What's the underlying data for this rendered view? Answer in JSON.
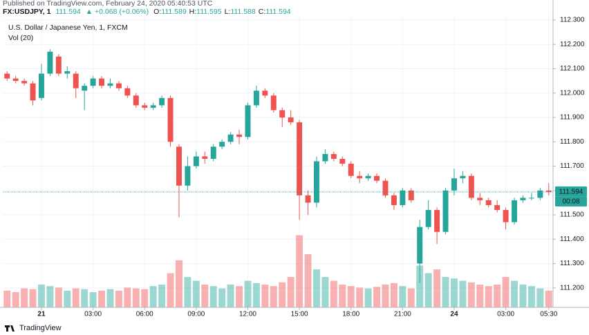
{
  "header": {
    "published": "Published on TradingView.com, February 24, 2020 05:40:53 UTC",
    "symbol": "FX:USDJPY, 1",
    "last": 111.594,
    "change": "▲ +0.068 (+0.06%)",
    "ohlc": [
      {
        "label": "O:",
        "value": 111.589
      },
      {
        "label": "H:",
        "value": 111.595
      },
      {
        "label": "L:",
        "value": 111.588
      },
      {
        "label": "C:",
        "value": 111.594
      }
    ]
  },
  "footer": {
    "brand": "TradingView"
  },
  "chart_data": {
    "type": "candlestick",
    "title": "U.S. Dollar / Japanese Yen, 1, FXCM",
    "volume_label": "Vol (20)",
    "categories": [
      null,
      null,
      null,
      null,
      "21",
      null,
      null,
      null,
      null,
      null,
      "03:00",
      null,
      null,
      null,
      null,
      null,
      "06:00",
      null,
      null,
      null,
      null,
      null,
      "09:00",
      null,
      null,
      null,
      null,
      null,
      "12:00",
      null,
      null,
      null,
      null,
      null,
      "15:00",
      null,
      null,
      null,
      null,
      null,
      "18:00",
      null,
      null,
      null,
      null,
      null,
      "21:00",
      null,
      null,
      null,
      null,
      null,
      "24",
      null,
      null,
      null,
      null,
      null,
      "03:00",
      null,
      null,
      null,
      null,
      "05:30"
    ],
    "open": [
      112.08,
      112.06,
      112.05,
      112.04,
      111.98,
      112.08,
      112.15,
      112.08,
      112.08,
      112.01,
      112.03,
      112.06,
      112.03,
      112.04,
      112.02,
      111.99,
      111.95,
      111.94,
      111.95,
      111.98,
      111.78,
      111.62,
      111.7,
      111.74,
      111.73,
      111.78,
      111.8,
      111.83,
      111.82,
      111.95,
      112.01,
      111.99,
      111.93,
      111.9,
      111.88,
      111.58,
      111.55,
      111.72,
      111.75,
      111.73,
      111.71,
      111.66,
      111.65,
      111.66,
      111.64,
      111.58,
      111.54,
      111.6,
      111.3,
      111.45,
      111.52,
      111.43,
      111.6,
      111.65,
      111.66,
      111.57,
      111.56,
      111.54,
      111.52,
      111.47,
      111.56,
      111.57,
      111.57,
      111.6
    ],
    "high": [
      112.09,
      112.07,
      112.06,
      112.05,
      112.12,
      112.18,
      112.16,
      112.11,
      112.09,
      112.04,
      112.07,
      112.07,
      112.06,
      112.05,
      112.03,
      112.0,
      111.96,
      111.96,
      111.99,
      111.99,
      111.79,
      111.74,
      111.76,
      111.76,
      111.79,
      111.81,
      111.84,
      111.85,
      111.96,
      112.03,
      112.02,
      112.0,
      111.94,
      111.93,
      111.89,
      111.6,
      111.74,
      111.77,
      111.76,
      111.74,
      111.72,
      111.68,
      111.67,
      111.67,
      111.65,
      111.59,
      111.61,
      111.61,
      111.48,
      111.56,
      111.53,
      111.61,
      111.69,
      111.68,
      111.67,
      111.59,
      111.57,
      111.56,
      111.53,
      111.57,
      111.58,
      111.59,
      111.61,
      111.63
    ],
    "low": [
      112.05,
      112.04,
      112.03,
      111.95,
      111.97,
      112.07,
      112.07,
      112.06,
      111.98,
      111.93,
      112.02,
      112.02,
      112.02,
      112.01,
      111.98,
      111.94,
      111.93,
      111.93,
      111.94,
      111.78,
      111.49,
      111.6,
      111.69,
      111.71,
      111.72,
      111.77,
      111.79,
      111.79,
      111.81,
      111.94,
      111.98,
      111.92,
      111.86,
      111.87,
      111.48,
      111.5,
      111.53,
      111.71,
      111.72,
      111.7,
      111.65,
      111.63,
      111.64,
      111.63,
      111.57,
      111.52,
      111.53,
      111.55,
      111.22,
      111.44,
      111.38,
      111.42,
      111.58,
      111.63,
      111.56,
      111.54,
      111.53,
      111.51,
      111.44,
      111.46,
      111.55,
      111.56,
      111.56,
      111.58
    ],
    "close": [
      112.06,
      112.05,
      112.04,
      111.97,
      112.08,
      112.17,
      112.08,
      112.09,
      112.02,
      112.03,
      112.06,
      112.03,
      112.04,
      112.02,
      111.99,
      111.95,
      111.94,
      111.95,
      111.98,
      111.8,
      111.62,
      111.7,
      111.74,
      111.73,
      111.78,
      111.8,
      111.83,
      111.82,
      111.95,
      112.01,
      111.99,
      111.93,
      111.9,
      111.88,
      111.58,
      111.55,
      111.72,
      111.75,
      111.73,
      111.71,
      111.66,
      111.65,
      111.66,
      111.64,
      111.58,
      111.54,
      111.6,
      111.56,
      111.45,
      111.52,
      111.43,
      111.6,
      111.65,
      111.66,
      111.57,
      111.56,
      111.54,
      111.52,
      111.47,
      111.56,
      111.57,
      111.57,
      111.6,
      111.594
    ],
    "volume": [
      22,
      20,
      25,
      24,
      30,
      28,
      26,
      22,
      25,
      24,
      20,
      22,
      24,
      22,
      26,
      25,
      24,
      28,
      30,
      45,
      62,
      40,
      35,
      30,
      28,
      25,
      30,
      28,
      35,
      32,
      30,
      28,
      33,
      40,
      95,
      70,
      50,
      40,
      35,
      30,
      28,
      26,
      25,
      27,
      30,
      32,
      28,
      25,
      55,
      45,
      50,
      40,
      38,
      35,
      33,
      30,
      28,
      30,
      40,
      35,
      30,
      28,
      25,
      22
    ],
    "vlim": [
      0,
      100
    ],
    "up_color": "#26a69a",
    "down_color": "#ef5350",
    "ylim": [
      111.12,
      112.32
    ],
    "yticks": [
      {
        "value": 112.3,
        "label": "112.300"
      },
      {
        "value": 112.2,
        "label": "112.200"
      },
      {
        "value": 112.1,
        "label": "112.100"
      },
      {
        "value": 112.0,
        "label": "112.000"
      },
      {
        "value": 111.9,
        "label": "111.900"
      },
      {
        "value": 111.8,
        "label": "111.800"
      },
      {
        "value": 111.7,
        "label": "111.700"
      },
      {
        "value": 111.6,
        "label": "111.600"
      },
      {
        "value": 111.5,
        "label": "111.500"
      },
      {
        "value": 111.4,
        "label": "111.400"
      },
      {
        "value": 111.3,
        "label": "111.300"
      },
      {
        "value": 111.2,
        "label": "111.200"
      }
    ],
    "price_line": 111.594,
    "countdown": "00:08",
    "grid": true
  }
}
